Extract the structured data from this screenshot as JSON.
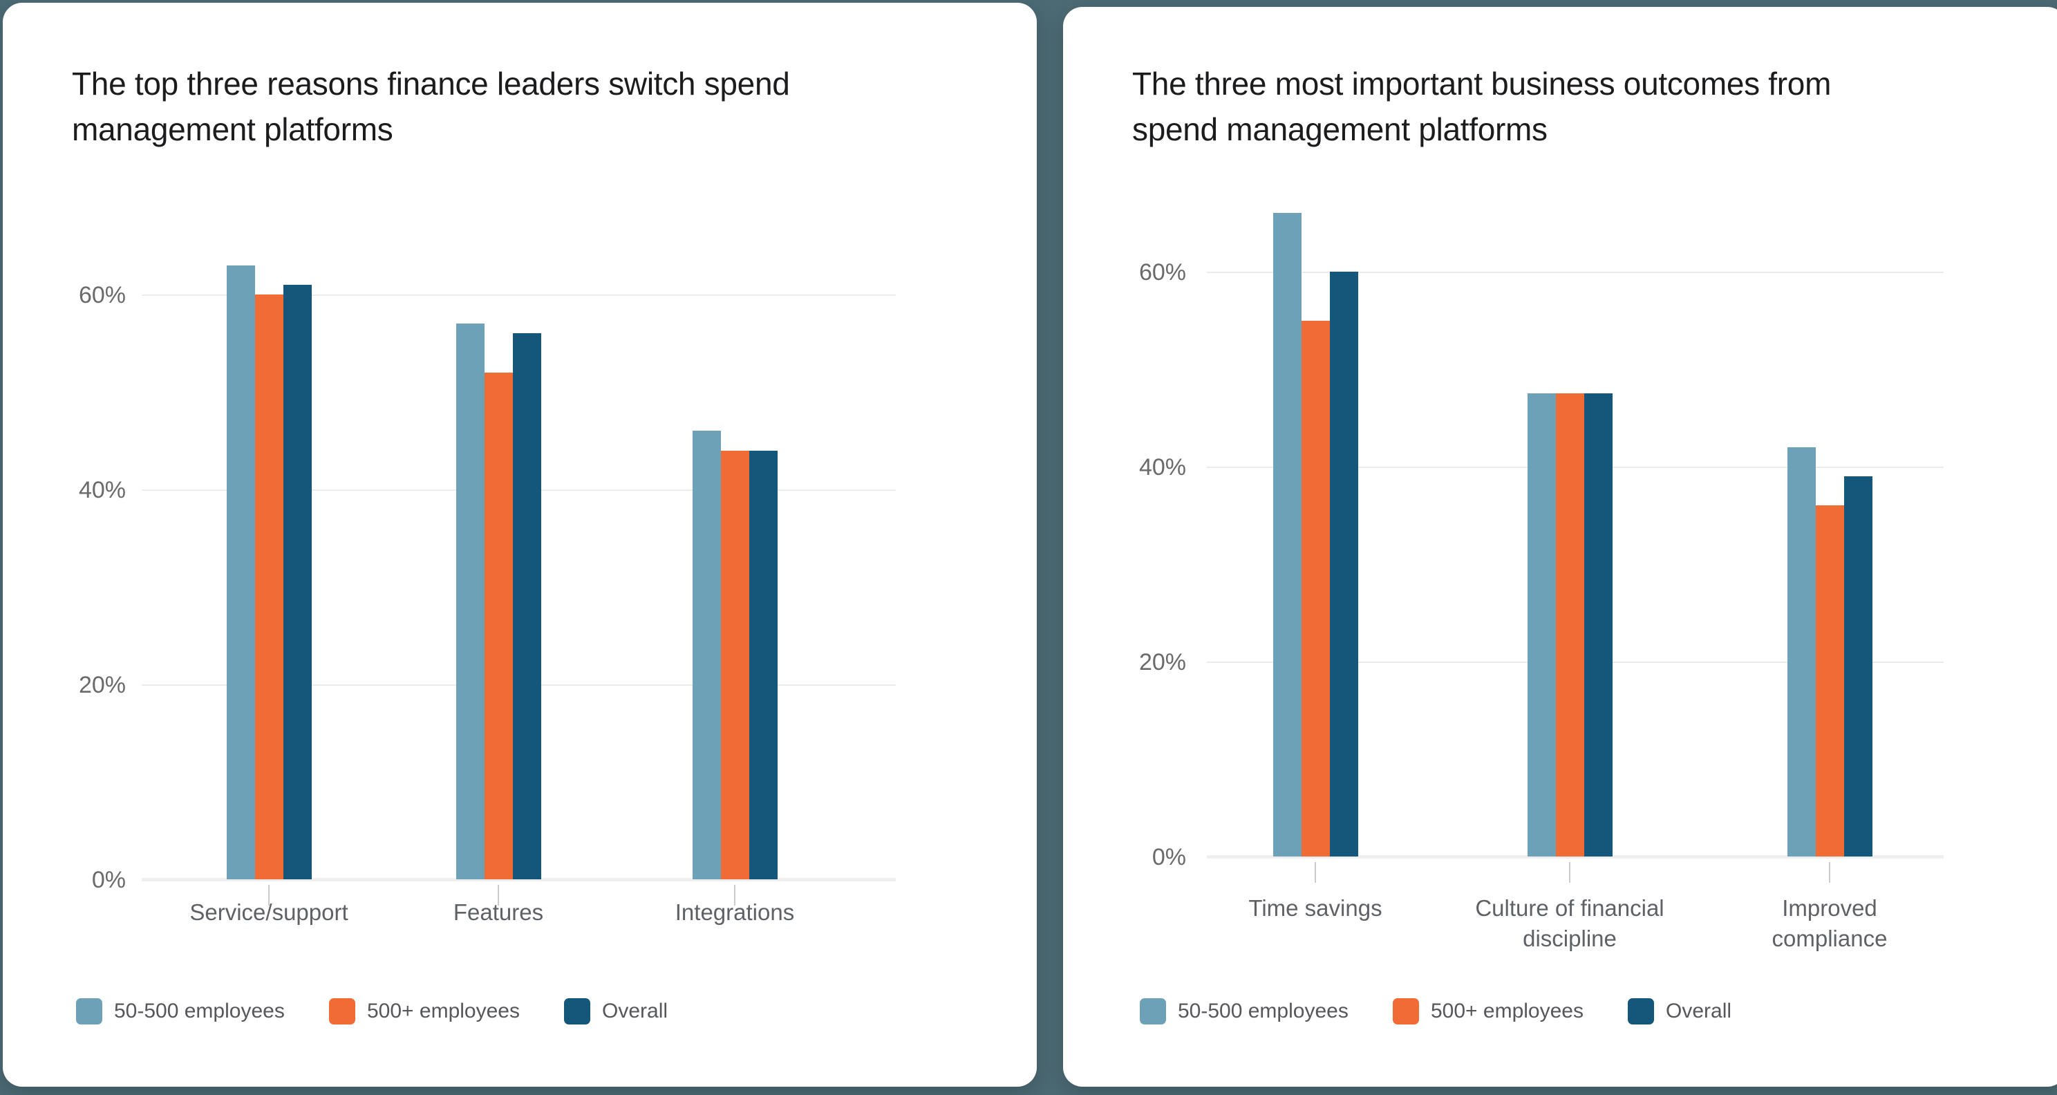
{
  "page": {
    "background_color": "#4C6A74",
    "card_color": "#FFFFFF"
  },
  "colors": {
    "series_light_blue": "#6DA1B8",
    "series_orange": "#F16B35",
    "series_navy": "#15577B"
  },
  "chart_data": [
    {
      "type": "bar",
      "title": "The top three reasons finance leaders switch spend management platforms",
      "categories": [
        "Service/support",
        "Features",
        "Integrations"
      ],
      "x_tick_lines": [
        [
          "Service/support"
        ],
        [
          "Features"
        ],
        [
          "Integrations"
        ]
      ],
      "series": [
        {
          "name": "50-500 employees",
          "color": "#6DA1B8",
          "values": [
            63,
            57,
            46
          ]
        },
        {
          "name": "500+ employees",
          "color": "#F16B35",
          "values": [
            60,
            52,
            44
          ]
        },
        {
          "name": "Overall",
          "color": "#15577B",
          "values": [
            61,
            56,
            44
          ]
        }
      ],
      "xlabel": "",
      "ylabel": "",
      "unit": "%",
      "ylim": [
        0,
        70
      ],
      "y_ticks": [
        0,
        20,
        40,
        60
      ],
      "y_tick_labels": [
        "0%",
        "20%",
        "40%",
        "60%"
      ],
      "grid": true,
      "legend_position": "bottom-left"
    },
    {
      "type": "bar",
      "title": "The three most important business outcomes from spend management platforms",
      "categories": [
        "Time savings",
        "Culture of financial discipline",
        "Improved compliance"
      ],
      "x_tick_lines": [
        [
          "Time savings"
        ],
        [
          "Culture of financial",
          "discipline"
        ],
        [
          "Improved",
          "compliance"
        ]
      ],
      "series": [
        {
          "name": "50-500 employees",
          "color": "#6DA1B8",
          "values": [
            66,
            47.5,
            42
          ]
        },
        {
          "name": "500+ employees",
          "color": "#F16B35",
          "values": [
            55,
            47.5,
            36
          ]
        },
        {
          "name": "Overall",
          "color": "#15577B",
          "values": [
            60,
            47.5,
            39
          ]
        }
      ],
      "xlabel": "",
      "ylabel": "",
      "unit": "%",
      "ylim": [
        0,
        70
      ],
      "y_ticks": [
        0,
        20,
        40,
        60
      ],
      "y_tick_labels": [
        "0%",
        "20%",
        "40%",
        "60%"
      ],
      "grid": true,
      "legend_position": "bottom-left"
    }
  ]
}
